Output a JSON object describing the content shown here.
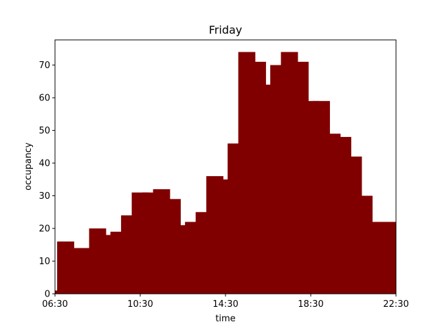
{
  "chart_data": {
    "type": "bar",
    "title": "Friday",
    "xlabel": "time",
    "ylabel": "occupancy",
    "x_tick_labels": [
      "06:30",
      "10:30",
      "14:30",
      "18:30",
      "22:30"
    ],
    "x_tick_hours": [
      6.5,
      10.5,
      14.5,
      18.5,
      22.5
    ],
    "y_ticks": [
      0,
      10,
      20,
      30,
      40,
      50,
      60,
      70
    ],
    "xlim_hours": [
      6.5,
      22.5
    ],
    "ylim": [
      0,
      77.7
    ],
    "bar_color": "#800000",
    "bar_width_hours": 0.4,
    "x_hours": [
      6.5,
      7.0,
      7.5,
      8.0,
      8.5,
      9.0,
      9.5,
      10.0,
      10.5,
      11.0,
      11.5,
      12.0,
      12.5,
      13.0,
      13.5,
      14.0,
      14.5,
      15.0,
      15.5,
      16.0,
      16.5,
      17.0,
      17.5,
      18.0,
      18.5,
      19.0,
      19.5,
      20.0,
      20.5,
      21.0,
      21.5,
      22.0,
      22.5
    ],
    "values": [
      1,
      16,
      14,
      14,
      20,
      18,
      19,
      24,
      31,
      31,
      32,
      29,
      21,
      22,
      25,
      36,
      35,
      46,
      74,
      71,
      64,
      70,
      74,
      71,
      59,
      59,
      49,
      48,
      42,
      30,
      22,
      22,
      22
    ]
  }
}
